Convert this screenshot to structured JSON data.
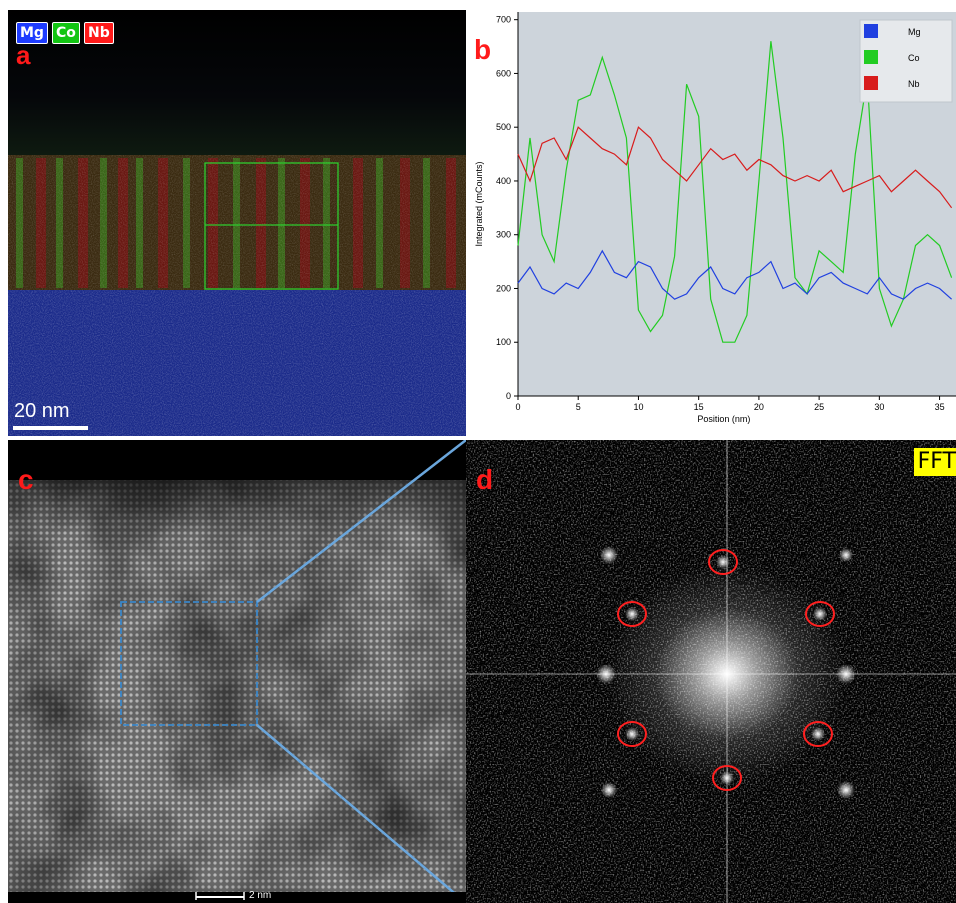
{
  "panels": {
    "a": {
      "letter": "a",
      "elements": [
        {
          "label": "Mg",
          "color": "#1e3cff"
        },
        {
          "label": "Co",
          "color": "#12c512"
        },
        {
          "label": "Nb",
          "color": "#ff1a1a"
        }
      ],
      "scale_bar": "20 nm"
    },
    "b": {
      "letter": "b"
    },
    "c": {
      "letter": "c",
      "scale_bar": "2 nm"
    },
    "d": {
      "letter": "d",
      "label": "FFT"
    }
  },
  "chart_data": {
    "type": "line",
    "xlabel": "Position (nm)",
    "ylabel": "Integrated (mCounts)",
    "xlim": [
      0,
      36
    ],
    "ylim": [
      0,
      700
    ],
    "x_ticks": [
      0,
      5,
      10,
      15,
      20,
      25,
      30,
      35
    ],
    "y_ticks": [
      0,
      100,
      200,
      300,
      400,
      500,
      600,
      700
    ],
    "grid": false,
    "legend_position": "top-right",
    "x": [
      0,
      1,
      2,
      3,
      4,
      5,
      6,
      7,
      8,
      9,
      10,
      11,
      12,
      13,
      14,
      15,
      16,
      17,
      18,
      19,
      20,
      21,
      22,
      23,
      24,
      25,
      26,
      27,
      28,
      29,
      30,
      31,
      32,
      33,
      34,
      35,
      36
    ],
    "series": [
      {
        "name": "Mg",
        "color": "#2040e0",
        "values": [
          210,
          240,
          200,
          190,
          210,
          200,
          230,
          270,
          230,
          220,
          250,
          240,
          200,
          180,
          190,
          220,
          240,
          200,
          190,
          220,
          230,
          250,
          200,
          210,
          190,
          220,
          230,
          210,
          200,
          190,
          220,
          190,
          180,
          200,
          210,
          200,
          180
        ]
      },
      {
        "name": "Co",
        "color": "#22cc22",
        "values": [
          280,
          480,
          300,
          250,
          420,
          550,
          560,
          630,
          560,
          480,
          160,
          120,
          150,
          260,
          580,
          520,
          180,
          100,
          100,
          150,
          400,
          660,
          480,
          220,
          190,
          270,
          250,
          230,
          450,
          590,
          200,
          130,
          180,
          280,
          300,
          280,
          220
        ]
      },
      {
        "name": "Nb",
        "color": "#d81c1c",
        "values": [
          450,
          400,
          470,
          480,
          440,
          500,
          480,
          460,
          450,
          430,
          500,
          480,
          440,
          420,
          400,
          430,
          460,
          440,
          450,
          420,
          440,
          430,
          410,
          400,
          410,
          400,
          420,
          380,
          390,
          400,
          410,
          380,
          400,
          420,
          400,
          380,
          350
        ]
      }
    ]
  }
}
